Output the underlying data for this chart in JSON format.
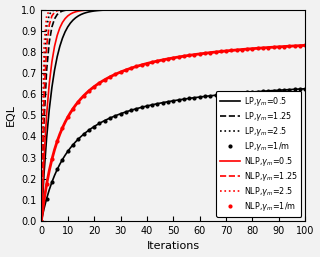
{
  "xlabel": "Iterations",
  "ylabel": "EQL",
  "xlim": [
    0,
    100
  ],
  "ylim": [
    0,
    1.0
  ],
  "yticks": [
    0.0,
    0.1,
    0.2,
    0.3,
    0.4,
    0.5,
    0.6,
    0.7,
    0.8,
    0.9,
    1.0
  ],
  "xticks": [
    0,
    10,
    20,
    30,
    40,
    50,
    60,
    70,
    80,
    90,
    100
  ],
  "bg_color": "#f2f2f2",
  "series": [
    {
      "label": "LP,$\\gamma_m$=0.5",
      "model": "LP",
      "gamma": 0.5,
      "style": "solid",
      "marker": false,
      "color": "black",
      "lw": 1.2
    },
    {
      "label": "LP,$\\gamma_m$=1.25",
      "model": "LP",
      "gamma": 1.25,
      "style": "dashed",
      "marker": false,
      "color": "black",
      "lw": 1.2
    },
    {
      "label": "LP,$\\gamma_m$=2.5",
      "model": "LP",
      "gamma": 2.5,
      "style": "dotted",
      "marker": false,
      "color": "black",
      "lw": 1.2
    },
    {
      "label": "LP,$\\gamma_m$=1/m",
      "model": "LP",
      "gamma": -1,
      "style": "solid",
      "marker": true,
      "color": "black",
      "lw": 1.2
    },
    {
      "label": "NLP,$\\gamma_m$=0.5",
      "model": "NLP",
      "gamma": 0.5,
      "style": "solid",
      "marker": false,
      "color": "red",
      "lw": 1.2
    },
    {
      "label": "NLP,$\\gamma_m$=1.25",
      "model": "NLP",
      "gamma": 1.25,
      "style": "dashed",
      "marker": false,
      "color": "red",
      "lw": 1.2
    },
    {
      "label": "NLP,$\\gamma_m$=2.5",
      "model": "NLP",
      "gamma": 2.5,
      "style": "dotted",
      "marker": false,
      "color": "red",
      "lw": 1.2
    },
    {
      "label": "NLP,$\\gamma_m$=1/m",
      "model": "NLP",
      "gamma": -1,
      "style": "solid",
      "marker": true,
      "color": "red",
      "lw": 2.0
    }
  ],
  "lp_fixed_limit": 1.0,
  "lp_1overm_limit": 0.695,
  "nlp_fixed_limit": 1.0,
  "nlp_1overm_limit": 0.9,
  "lp_fixed_scale": 1.8,
  "lp_1overm_scale": 0.09,
  "nlp_fixed_scale": 2.8,
  "nlp_1overm_scale": 0.12,
  "legend_fontsize": 5.8,
  "axis_fontsize": 8,
  "tick_fontsize": 7
}
